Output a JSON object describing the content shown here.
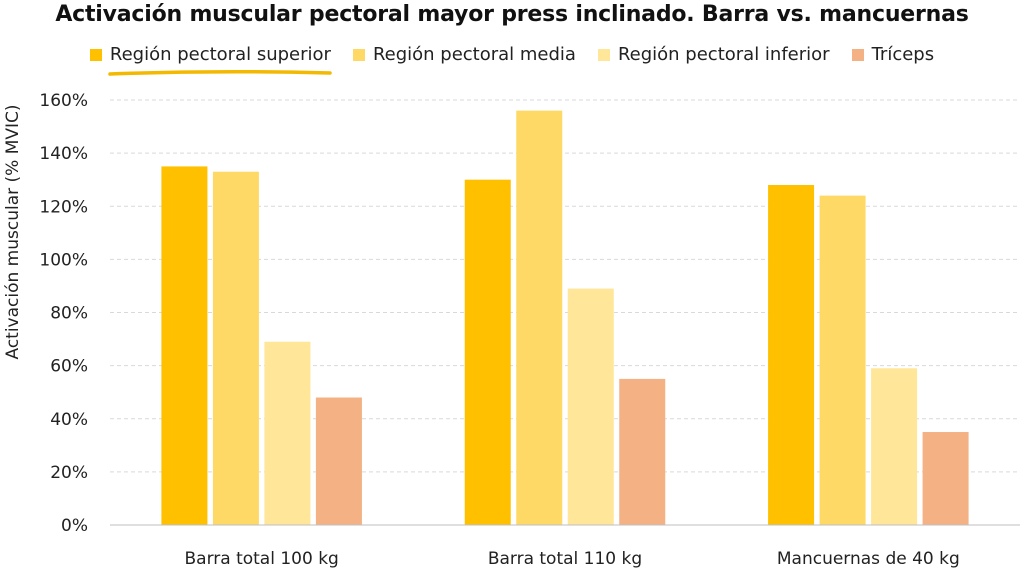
{
  "colors": {
    "highlight_underline": "#F3B800",
    "grid": "#D9D9D9",
    "axis": "#BFBFBF"
  },
  "chart_data": {
    "type": "bar",
    "title": "Activación muscular pectoral mayor press inclinado. Barra vs. mancuernas",
    "xlabel": "",
    "ylabel": "Activación muscular (% MVIC)",
    "ylim": [
      0,
      160
    ],
    "ytick_values": [
      0,
      20,
      40,
      60,
      80,
      100,
      120,
      140,
      160
    ],
    "ytick_suffix": "%",
    "grid": true,
    "legend_position": "top",
    "categories": [
      "Barra total 100 kg",
      "Barra total 110 kg",
      "Mancuernas de 40 kg"
    ],
    "series": [
      {
        "name": "Región pectoral superior",
        "color": "#FFC000",
        "values": [
          135,
          130,
          128
        ]
      },
      {
        "name": "Región pectoral media",
        "color": "#FFD966",
        "values": [
          133,
          156,
          124
        ]
      },
      {
        "name": "Región pectoral inferior",
        "color": "#FFE699",
        "values": [
          69,
          89,
          59
        ]
      },
      {
        "name": "Tríceps",
        "color": "#F4B183",
        "values": [
          48,
          55,
          35
        ]
      }
    ]
  }
}
